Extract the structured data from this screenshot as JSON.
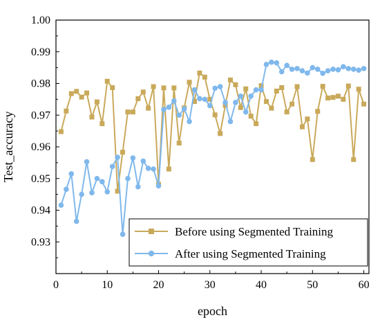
{
  "chart_data": {
    "type": "line",
    "title": "",
    "xlabel": "epoch",
    "ylabel": "Test_accuracy",
    "xlim": [
      0,
      61
    ],
    "ylim": [
      0.92,
      1.0
    ],
    "x_ticks": [
      0,
      10,
      20,
      30,
      40,
      50,
      60
    ],
    "x_tick_labels": [
      "0",
      "10",
      "20",
      "30",
      "40",
      "50",
      "60"
    ],
    "y_ticks": [
      0.93,
      0.94,
      0.95,
      0.96,
      0.97,
      0.98,
      0.99,
      1.0
    ],
    "y_tick_labels": [
      "0.93",
      "0.94",
      "0.95",
      "0.96",
      "0.97",
      "0.98",
      "0.99",
      "1.00"
    ],
    "legend_position": "bottom-right",
    "grid": false,
    "x": [
      1,
      2,
      3,
      4,
      5,
      6,
      7,
      8,
      9,
      10,
      11,
      12,
      13,
      14,
      15,
      16,
      17,
      18,
      19,
      20,
      21,
      22,
      23,
      24,
      25,
      26,
      27,
      28,
      29,
      30,
      31,
      32,
      33,
      34,
      35,
      36,
      37,
      38,
      39,
      40,
      41,
      42,
      43,
      44,
      45,
      46,
      47,
      48,
      49,
      50,
      51,
      52,
      53,
      54,
      55,
      56,
      57,
      58,
      59,
      60
    ],
    "series": [
      {
        "name": "Before using Segmented Training",
        "color": "#c9a95a",
        "marker": "square",
        "values": [
          0.9648,
          0.9713,
          0.9768,
          0.9775,
          0.9757,
          0.977,
          0.9694,
          0.9742,
          0.9673,
          0.9807,
          0.9787,
          0.946,
          0.9583,
          0.971,
          0.971,
          0.9752,
          0.9773,
          0.9722,
          0.979,
          0.9482,
          0.9786,
          0.953,
          0.9786,
          0.9612,
          0.9723,
          0.9804,
          0.9743,
          0.9833,
          0.982,
          0.975,
          0.9701,
          0.9642,
          0.9731,
          0.9811,
          0.9796,
          0.9724,
          0.9783,
          0.9697,
          0.9673,
          0.9793,
          0.9743,
          0.9722,
          0.9776,
          0.9787,
          0.971,
          0.9735,
          0.979,
          0.9663,
          0.9688,
          0.956,
          0.9712,
          0.9791,
          0.9754,
          0.9756,
          0.976,
          0.975,
          0.9792,
          0.956,
          0.9782,
          0.9735
        ]
      },
      {
        "name": "After using Segmented Training",
        "color": "#7fb8ec",
        "marker": "circle",
        "values": [
          0.9416,
          0.9466,
          0.9515,
          0.9365,
          0.945,
          0.9553,
          0.9455,
          0.95,
          0.949,
          0.9458,
          0.9538,
          0.9567,
          0.9324,
          0.95,
          0.9565,
          0.9474,
          0.9555,
          0.9532,
          0.953,
          0.9477,
          0.9718,
          0.9725,
          0.9745,
          0.97,
          0.972,
          0.968,
          0.978,
          0.9752,
          0.975,
          0.973,
          0.9785,
          0.979,
          0.974,
          0.968,
          0.974,
          0.976,
          0.971,
          0.976,
          0.978,
          0.978,
          0.986,
          0.9867,
          0.9865,
          0.9837,
          0.9857,
          0.9845,
          0.9847,
          0.984,
          0.9833,
          0.985,
          0.9845,
          0.9832,
          0.984,
          0.9845,
          0.9843,
          0.9853,
          0.9847,
          0.9845,
          0.9842,
          0.9847
        ]
      }
    ]
  }
}
